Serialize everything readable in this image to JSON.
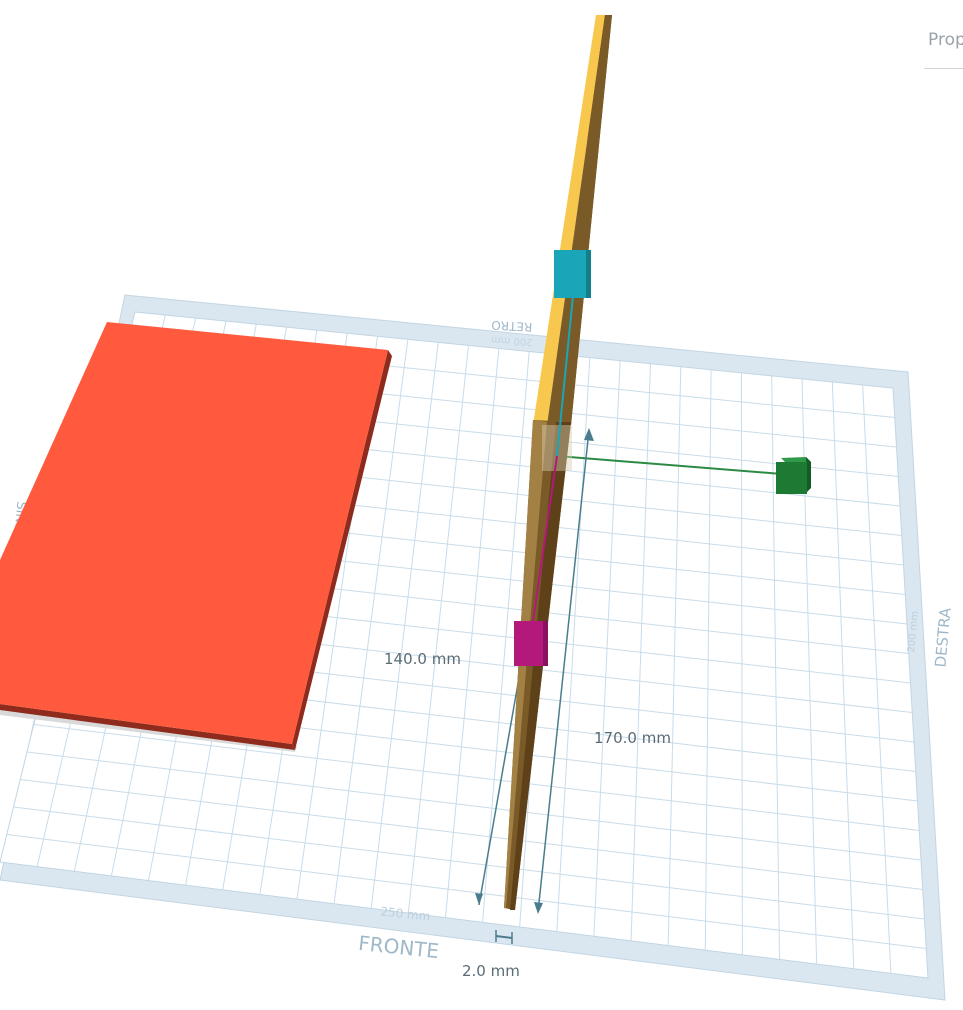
{
  "panel": {
    "tab_label": "Proprietà"
  },
  "workplane": {
    "side_labels": {
      "back": "RETRO",
      "front": "FRONTE",
      "right": "DESTRA",
      "left": "SINIS"
    },
    "size_labels": {
      "front": "250 mm",
      "right": "200 mm",
      "back": "200 mm"
    }
  },
  "dimensions": {
    "height_left": "140.0 mm",
    "height_right": "170.0 mm",
    "width": "2.0 mm"
  },
  "colors": {
    "box_top": "#ff5a3d",
    "box_side": "#8e2b1c",
    "rod_light": "#f7c84d",
    "rod_dark": "#7a5a27",
    "handle_top": "#1aa6b8",
    "handle_mid": "#b3187a",
    "handle_rotate": "#1c7a32",
    "grid_line": "#c8dcea",
    "grid_border": "#dae7f1",
    "dim_line": "#4a7d8c"
  }
}
